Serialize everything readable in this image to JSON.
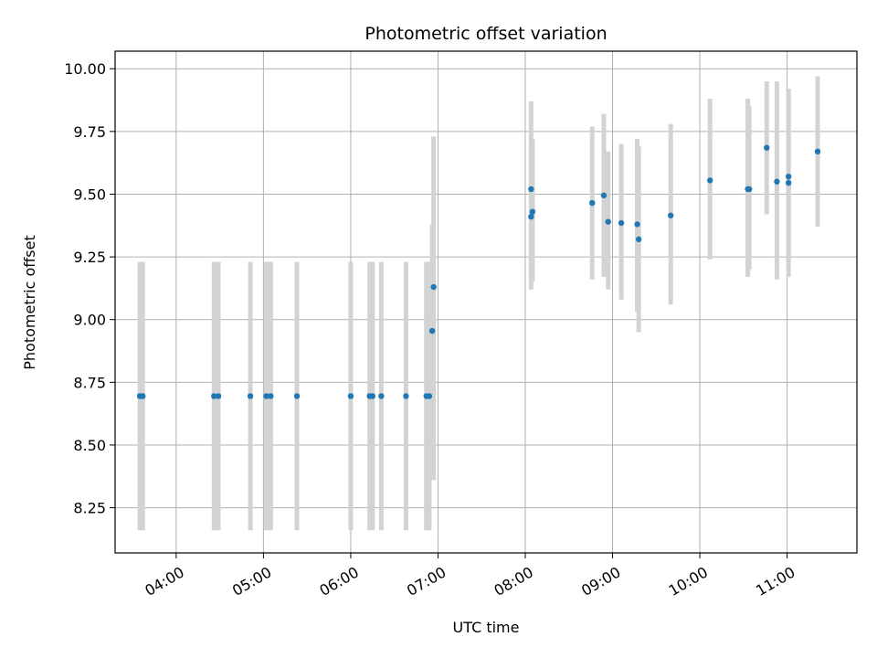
{
  "chart_data": {
    "type": "scatter",
    "title": "Photometric offset variation",
    "xlabel": "UTC time",
    "ylabel": "Photometric offset",
    "xlim": [
      "03:18",
      "11:48"
    ],
    "ylim": [
      8.07,
      10.07
    ],
    "x_ticks": [
      "04:00",
      "05:00",
      "06:00",
      "07:00",
      "08:00",
      "09:00",
      "10:00",
      "11:00"
    ],
    "y_ticks": [
      8.25,
      8.5,
      8.75,
      9.0,
      9.25,
      9.5,
      9.75,
      10.0
    ],
    "y_tick_labels": [
      "8.25",
      "8.50",
      "8.75",
      "9.00",
      "9.25",
      "9.50",
      "9.75",
      "10.00"
    ],
    "grid": true,
    "marker_color": "#1f77b4",
    "errorbar_color": "#d3d3d3",
    "points": [
      {
        "time": "03:35",
        "y": 8.695,
        "ylo": 8.16,
        "yhi": 9.23
      },
      {
        "time": "03:37",
        "y": 8.695,
        "ylo": 8.16,
        "yhi": 9.23
      },
      {
        "time": "04:26",
        "y": 8.695,
        "ylo": 8.16,
        "yhi": 9.23
      },
      {
        "time": "04:29",
        "y": 8.695,
        "ylo": 8.16,
        "yhi": 9.23
      },
      {
        "time": "04:51",
        "y": 8.695,
        "ylo": 8.16,
        "yhi": 9.23
      },
      {
        "time": "05:02",
        "y": 8.695,
        "ylo": 8.16,
        "yhi": 9.23
      },
      {
        "time": "05:05",
        "y": 8.695,
        "ylo": 8.16,
        "yhi": 9.23
      },
      {
        "time": "05:23",
        "y": 8.695,
        "ylo": 8.16,
        "yhi": 9.23
      },
      {
        "time": "06:00",
        "y": 8.695,
        "ylo": 8.16,
        "yhi": 9.23
      },
      {
        "time": "06:13",
        "y": 8.695,
        "ylo": 8.16,
        "yhi": 9.23
      },
      {
        "time": "06:15",
        "y": 8.695,
        "ylo": 8.16,
        "yhi": 9.23
      },
      {
        "time": "06:21",
        "y": 8.695,
        "ylo": 8.16,
        "yhi": 9.23
      },
      {
        "time": "06:38",
        "y": 8.695,
        "ylo": 8.16,
        "yhi": 9.23
      },
      {
        "time": "06:52",
        "y": 8.695,
        "ylo": 8.16,
        "yhi": 9.23
      },
      {
        "time": "06:54",
        "y": 8.695,
        "ylo": 8.16,
        "yhi": 9.23
      },
      {
        "time": "06:56",
        "y": 8.955,
        "ylo": 8.53,
        "yhi": 9.38
      },
      {
        "time": "06:57",
        "y": 9.13,
        "ylo": 8.36,
        "yhi": 9.73
      },
      {
        "time": "08:04",
        "y": 9.52,
        "ylo": 9.17,
        "yhi": 9.87
      },
      {
        "time": "08:05",
        "y": 9.43,
        "ylo": 9.15,
        "yhi": 9.72
      },
      {
        "time": "08:04",
        "y": 9.41,
        "ylo": 9.12,
        "yhi": 9.7
      },
      {
        "time": "08:46",
        "y": 9.465,
        "ylo": 9.16,
        "yhi": 9.77
      },
      {
        "time": "08:54",
        "y": 9.495,
        "ylo": 9.17,
        "yhi": 9.82
      },
      {
        "time": "08:57",
        "y": 9.39,
        "ylo": 9.12,
        "yhi": 9.67
      },
      {
        "time": "09:06",
        "y": 9.385,
        "ylo": 9.08,
        "yhi": 9.7
      },
      {
        "time": "09:17",
        "y": 9.38,
        "ylo": 9.03,
        "yhi": 9.72
      },
      {
        "time": "09:18",
        "y": 9.32,
        "ylo": 8.95,
        "yhi": 9.69
      },
      {
        "time": "09:40",
        "y": 9.415,
        "ylo": 9.06,
        "yhi": 9.78
      },
      {
        "time": "10:07",
        "y": 9.555,
        "ylo": 9.24,
        "yhi": 9.88
      },
      {
        "time": "10:33",
        "y": 9.52,
        "ylo": 9.17,
        "yhi": 9.88
      },
      {
        "time": "10:34",
        "y": 9.52,
        "ylo": 9.2,
        "yhi": 9.85
      },
      {
        "time": "10:46",
        "y": 9.685,
        "ylo": 9.42,
        "yhi": 9.95
      },
      {
        "time": "10:53",
        "y": 9.55,
        "ylo": 9.16,
        "yhi": 9.95
      },
      {
        "time": "11:01",
        "y": 9.545,
        "ylo": 9.17,
        "yhi": 9.92
      },
      {
        "time": "11:01",
        "y": 9.57,
        "ylo": 9.22,
        "yhi": 9.92
      },
      {
        "time": "11:21",
        "y": 9.67,
        "ylo": 9.37,
        "yhi": 9.97
      }
    ]
  }
}
